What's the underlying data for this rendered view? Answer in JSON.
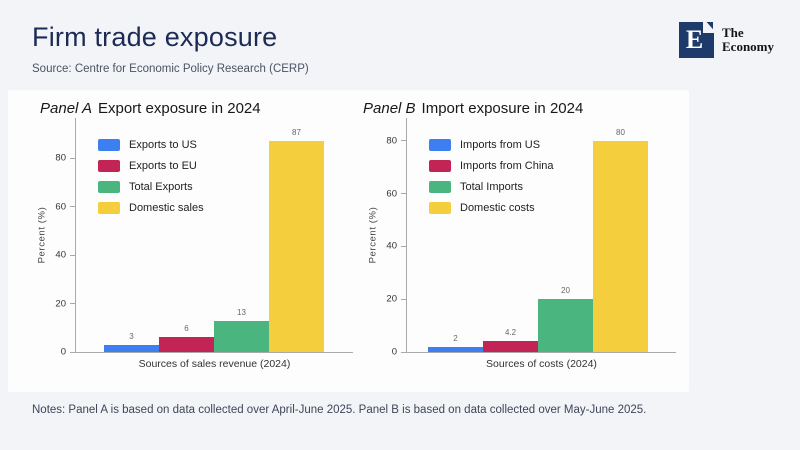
{
  "slide": {
    "title": "Firm trade exposure",
    "source": "Source: Centre for Economic Policy Research (CERP)",
    "notes": "Notes: Panel A is based on data collected over April-June 2025. Panel B is based on data collected over May-June 2025."
  },
  "logo": {
    "letter": "E",
    "line1": "The",
    "line2": "Economy",
    "square_color": "#1d3a6b"
  },
  "chart_data": [
    {
      "type": "bar",
      "panel_label": "Panel A",
      "title": "Export exposure in 2024",
      "xlabel": "Sources of sales revenue (2024)",
      "ylabel": "Percent (%)",
      "ylim": [
        0,
        97
      ],
      "yticks": [
        0,
        20,
        40,
        60,
        80
      ],
      "grid": false,
      "legend_position": "top-left",
      "categories": [
        "Exports to US",
        "Exports to EU",
        "Total Exports",
        "Domestic sales"
      ],
      "values": [
        3,
        6,
        13,
        87
      ],
      "value_labels": [
        "3",
        "6",
        "13",
        "87"
      ],
      "colors": [
        "#3d7ef0",
        "#c22455",
        "#4bb580",
        "#f5ce3e"
      ]
    },
    {
      "type": "bar",
      "panel_label": "Panel B",
      "title": "Import exposure in 2024",
      "xlabel": "Sources of costs (2024)",
      "ylabel": "Percent (%)",
      "ylim": [
        0,
        89
      ],
      "yticks": [
        0,
        20,
        40,
        60,
        80
      ],
      "grid": false,
      "legend_position": "top-left",
      "categories": [
        "Imports from US",
        "Imports from China",
        "Total Imports",
        "Domestic costs"
      ],
      "values": [
        2,
        4.2,
        20,
        80
      ],
      "value_labels": [
        "2",
        "4.2",
        "20",
        "80"
      ],
      "colors": [
        "#3d7ef0",
        "#c22455",
        "#4bb580",
        "#f5ce3e"
      ]
    }
  ]
}
